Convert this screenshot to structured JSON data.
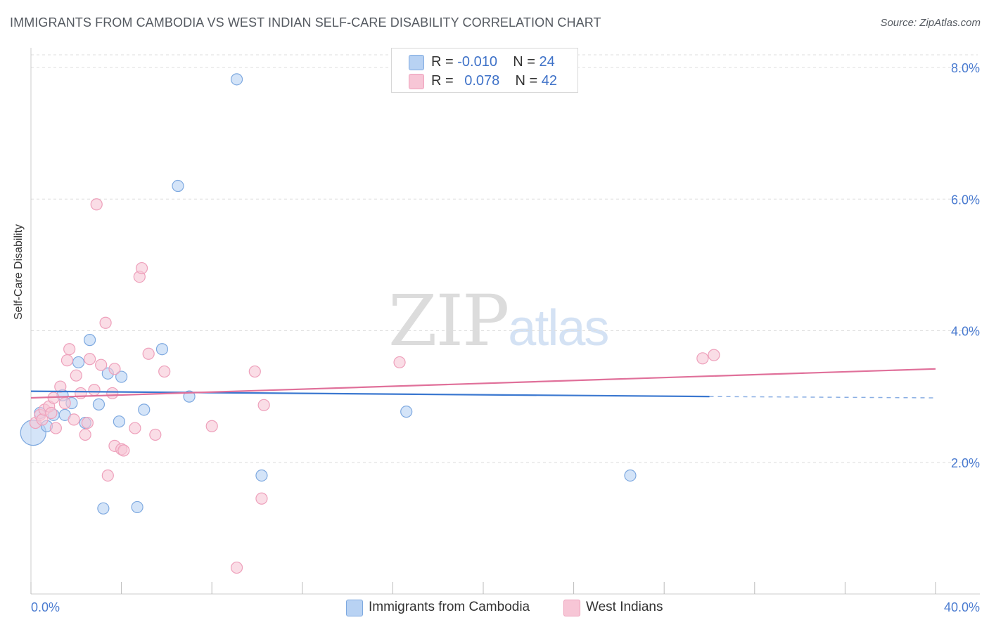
{
  "header": {
    "title": "IMMIGRANTS FROM CAMBODIA VS WEST INDIAN SELF-CARE DISABILITY CORRELATION CHART",
    "source": "Source: ZipAtlas.com"
  },
  "watermark": {
    "zip": "ZIP",
    "atlas": "atlas"
  },
  "stats": {
    "rows": [
      {
        "r_label": "R =",
        "r_value": "-0.010",
        "n_label": "N =",
        "n_value": "24"
      },
      {
        "r_label": "R =",
        "r_value": "0.078",
        "n_label": "N =",
        "n_value": "42"
      }
    ]
  },
  "legend": {
    "items": [
      {
        "label": "Immigrants from Cambodia"
      },
      {
        "label": "West Indians"
      }
    ]
  },
  "colors": {
    "blue_fill": "#b8d2f3",
    "blue_stroke": "#7ea9e0",
    "blue_line": "#3b78d0",
    "pink_fill": "#f7c6d6",
    "pink_stroke": "#eea0bb",
    "pink_line": "#e0709a",
    "tick_text": "#4a7bd0",
    "grid": "#dddddd"
  },
  "chart_data": {
    "type": "scatter",
    "title": "IMMIGRANTS FROM CAMBODIA VS WEST INDIAN SELF-CARE DISABILITY CORRELATION CHART",
    "xlabel": "",
    "ylabel": "Self-Care Disability",
    "xlim": [
      0,
      40
    ],
    "ylim": [
      0,
      8.3
    ],
    "x_tick_labels": [
      {
        "value": 0,
        "label": "0.0%"
      },
      {
        "value": 40,
        "label": "40.0%"
      }
    ],
    "y_ticks": [
      {
        "value": 2,
        "label": "2.0%"
      },
      {
        "value": 4,
        "label": "4.0%"
      },
      {
        "value": 6,
        "label": "6.0%"
      },
      {
        "value": 8,
        "label": "8.0%"
      }
    ],
    "series": [
      {
        "name": "Immigrants from Cambodia",
        "color": "blue",
        "points": [
          [
            0.1,
            2.45
          ],
          [
            0.4,
            2.75
          ],
          [
            0.7,
            2.55
          ],
          [
            1.0,
            2.72
          ],
          [
            1.4,
            3.02
          ],
          [
            1.5,
            2.72
          ],
          [
            1.8,
            2.9
          ],
          [
            2.1,
            3.52
          ],
          [
            2.6,
            3.86
          ],
          [
            2.4,
            2.6
          ],
          [
            3.0,
            2.88
          ],
          [
            3.2,
            1.3
          ],
          [
            3.4,
            3.35
          ],
          [
            3.9,
            2.62
          ],
          [
            4.0,
            3.3
          ],
          [
            4.7,
            1.32
          ],
          [
            5.0,
            2.8
          ],
          [
            5.8,
            3.72
          ],
          [
            6.5,
            6.2
          ],
          [
            7.0,
            3.0
          ],
          [
            9.1,
            7.82
          ],
          [
            10.2,
            1.8
          ],
          [
            16.6,
            2.77
          ],
          [
            26.5,
            1.8
          ]
        ],
        "trend": {
          "x": [
            0,
            30
          ],
          "y": [
            3.08,
            3.0
          ],
          "dashed_to": [
            40,
            2.98
          ]
        }
      },
      {
        "name": "West Indians",
        "color": "pink",
        "points": [
          [
            0.2,
            2.6
          ],
          [
            0.4,
            2.72
          ],
          [
            0.5,
            2.65
          ],
          [
            0.6,
            2.8
          ],
          [
            0.8,
            2.85
          ],
          [
            0.9,
            2.75
          ],
          [
            1.0,
            2.98
          ],
          [
            1.1,
            2.52
          ],
          [
            1.3,
            3.15
          ],
          [
            1.5,
            2.9
          ],
          [
            1.6,
            3.55
          ],
          [
            1.7,
            3.72
          ],
          [
            1.9,
            2.65
          ],
          [
            2.0,
            3.32
          ],
          [
            2.2,
            3.05
          ],
          [
            2.4,
            2.42
          ],
          [
            2.5,
            2.6
          ],
          [
            2.6,
            3.57
          ],
          [
            2.8,
            3.1
          ],
          [
            2.9,
            5.92
          ],
          [
            3.1,
            3.48
          ],
          [
            3.3,
            4.12
          ],
          [
            3.4,
            1.8
          ],
          [
            3.6,
            3.05
          ],
          [
            3.7,
            3.42
          ],
          [
            3.7,
            2.25
          ],
          [
            4.0,
            2.2
          ],
          [
            4.1,
            2.18
          ],
          [
            4.6,
            2.52
          ],
          [
            4.8,
            4.82
          ],
          [
            4.9,
            4.95
          ],
          [
            5.2,
            3.65
          ],
          [
            5.5,
            2.42
          ],
          [
            5.9,
            3.38
          ],
          [
            8.0,
            2.55
          ],
          [
            9.1,
            0.4
          ],
          [
            9.9,
            3.38
          ],
          [
            10.2,
            1.45
          ],
          [
            10.3,
            2.87
          ],
          [
            16.3,
            3.52
          ],
          [
            29.7,
            3.58
          ],
          [
            30.2,
            3.63
          ]
        ],
        "trend": {
          "x": [
            0,
            40
          ],
          "y": [
            2.98,
            3.42
          ]
        }
      }
    ]
  }
}
